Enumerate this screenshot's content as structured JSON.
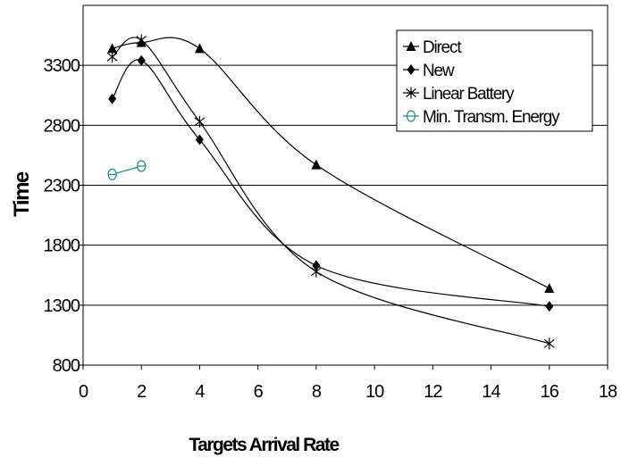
{
  "chart_data": {
    "type": "line",
    "title": "",
    "xlabel": "Targets Arrival Rate",
    "ylabel": "Time",
    "xlim": [
      0,
      18
    ],
    "ylim": [
      800,
      3800
    ],
    "x_ticks": [
      "0",
      "2",
      "4",
      "6",
      "8",
      "10",
      "12",
      "14",
      "16",
      "18"
    ],
    "y_ticks": [
      "800",
      "1300",
      "1800",
      "2300",
      "2800",
      "3300"
    ],
    "grid": "horizontal",
    "legend_position": "top-right",
    "series": [
      {
        "name": "Direct",
        "marker": "triangle",
        "color": "#000000",
        "x": [
          1,
          2,
          4,
          8,
          16
        ],
        "y": [
          3440,
          3490,
          3440,
          2470,
          1440
        ]
      },
      {
        "name": "New",
        "marker": "diamond",
        "color": "#000000",
        "x": [
          1,
          2,
          4,
          8,
          16
        ],
        "y": [
          3020,
          3340,
          2680,
          1630,
          1290
        ]
      },
      {
        "name": "Linear Battery",
        "marker": "asterisk",
        "color": "#000000",
        "x": [
          1,
          2,
          4,
          8,
          16
        ],
        "y": [
          3370,
          3510,
          2830,
          1580,
          980
        ]
      },
      {
        "name": "Min. Transm. Energy",
        "marker": "circle",
        "color": "#1a8a8a",
        "x": [
          1,
          2
        ],
        "y": [
          2390,
          2460
        ]
      }
    ]
  }
}
